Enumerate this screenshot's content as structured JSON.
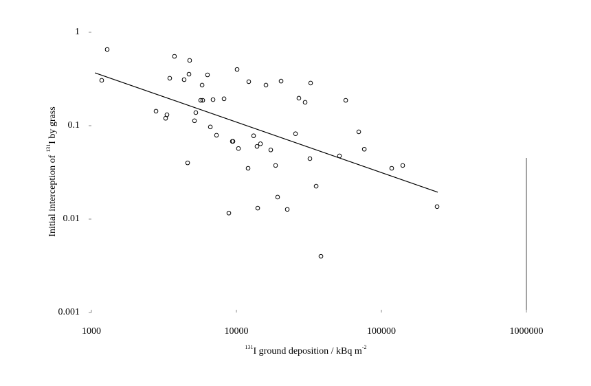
{
  "chart_data": {
    "type": "scatter",
    "x_label": {
      "sup": "131",
      "text": "I ground deposition / kBq m",
      "sup2": "-2"
    },
    "y_label": {
      "before": "Initial interception of",
      "sup": "131",
      "after": "I by grass"
    },
    "log_x": true,
    "log_y": true,
    "xlim": [
      1000,
      1000000
    ],
    "ylim": [
      0.001,
      1
    ],
    "xticks": [
      1000,
      10000,
      100000,
      1000000
    ],
    "yticks": [
      0.001,
      0.01,
      0.1,
      1
    ],
    "color": "#000000",
    "x": [
      1178,
      1285,
      2790,
      3250,
      3320,
      3470,
      3740,
      4360,
      4610,
      4760,
      4710,
      5140,
      5250,
      5670,
      5800,
      5860,
      6320,
      6610,
      6900,
      7290,
      8220,
      8870,
      9370,
      9470,
      10110,
      10330,
      12040,
      12170,
      13140,
      13870,
      14030,
      14650,
      15990,
      17260,
      18630,
      19240,
      20330,
      22430,
      25570,
      26980,
      29780,
      32140,
      32500,
      35480,
      38280,
      51400,
      56750,
      69800,
      76200,
      117800,
      140300,
      242100
    ],
    "y": [
      0.306,
      0.655,
      0.143,
      0.12,
      0.131,
      0.322,
      0.553,
      0.311,
      0.04,
      0.5,
      0.356,
      0.113,
      0.138,
      0.187,
      0.272,
      0.187,
      0.35,
      0.097,
      0.19,
      0.079,
      0.194,
      0.0116,
      0.068,
      0.068,
      0.4,
      0.057,
      0.035,
      0.296,
      0.078,
      0.06,
      0.0131,
      0.064,
      0.272,
      0.055,
      0.0375,
      0.0172,
      0.3,
      0.0127,
      0.082,
      0.197,
      0.178,
      0.0444,
      0.286,
      0.0225,
      0.004,
      0.0475,
      0.187,
      0.086,
      0.056,
      0.035,
      0.0375,
      0.0136
    ],
    "fit_line": {
      "x": [
        1057,
        244800
      ],
      "y": [
        0.368,
        0.0194
      ]
    }
  }
}
